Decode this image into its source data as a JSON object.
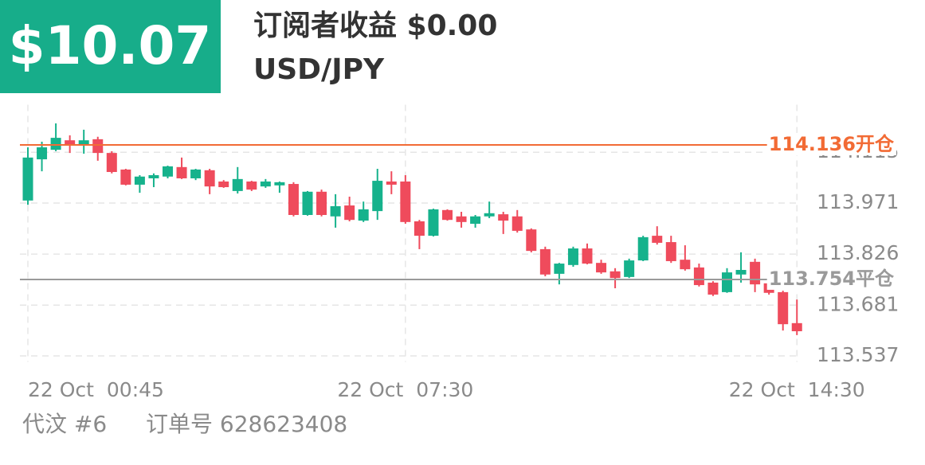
{
  "header": {
    "badge": "$10.07",
    "title": "订阅者收益 $0.00",
    "subtitle": "USD/JPY"
  },
  "chart_data": {
    "type": "candlestick",
    "categories": [
      "22 Oct  00:45",
      null,
      null,
      null,
      null,
      null,
      null,
      null,
      null,
      null,
      null,
      null,
      null,
      null,
      null,
      null,
      null,
      null,
      null,
      null,
      null,
      null,
      null,
      null,
      null,
      null,
      null,
      "22 Oct  07:30",
      null,
      null,
      null,
      null,
      null,
      null,
      null,
      null,
      null,
      null,
      null,
      null,
      null,
      null,
      null,
      null,
      null,
      null,
      null,
      null,
      null,
      null,
      null,
      null,
      null,
      null,
      null,
      "22 Oct  14:30"
    ],
    "series": [
      {
        "name": "open",
        "values": [
          113.978,
          114.095,
          114.122,
          114.149,
          114.136,
          114.152,
          114.113,
          114.066,
          114.023,
          114.041,
          114.046,
          114.073,
          114.041,
          114.064,
          114.032,
          114.005,
          114.032,
          114.018,
          114.021,
          114.025,
          113.937,
          114.003,
          113.933,
          113.964,
          113.921,
          113.948,
          114.032,
          114.032,
          113.919,
          113.878,
          113.951,
          113.933,
          113.912,
          113.933,
          113.939,
          113.933,
          113.896,
          113.84,
          113.77,
          113.795,
          113.842,
          113.801,
          113.777,
          113.761,
          113.808,
          113.878,
          113.86,
          113.81,
          113.788,
          113.745,
          113.718,
          113.768,
          113.804,
          113.743,
          113.718,
          113.63
        ]
      },
      {
        "name": "high",
        "values": [
          114.129,
          114.145,
          114.197,
          114.163,
          114.179,
          114.159,
          114.118,
          114.068,
          114.05,
          114.055,
          114.077,
          114.1,
          114.068,
          114.068,
          114.036,
          114.073,
          114.034,
          114.039,
          114.032,
          114.03,
          114.005,
          114.009,
          113.996,
          113.989,
          113.975,
          114.068,
          114.061,
          114.05,
          113.923,
          113.955,
          113.953,
          113.946,
          113.937,
          113.975,
          113.946,
          113.951,
          113.899,
          113.847,
          113.801,
          113.847,
          113.856,
          113.81,
          113.786,
          113.813,
          113.878,
          113.905,
          113.878,
          113.851,
          113.799,
          113.749,
          113.786,
          113.831,
          113.813,
          113.772,
          113.722,
          113.697
        ]
      },
      {
        "name": "low",
        "values": [
          113.966,
          114.061,
          114.118,
          114.113,
          114.111,
          114.091,
          114.055,
          114.021,
          114.0,
          114.016,
          114.041,
          114.039,
          114.036,
          113.996,
          114.014,
          113.998,
          114.005,
          114.014,
          114.0,
          113.933,
          113.935,
          113.933,
          113.901,
          113.919,
          113.917,
          113.923,
          113.996,
          113.912,
          113.84,
          113.876,
          113.921,
          113.901,
          113.901,
          113.928,
          113.883,
          113.887,
          113.831,
          113.763,
          113.74,
          113.79,
          113.797,
          113.77,
          113.729,
          113.758,
          113.806,
          113.853,
          113.801,
          113.779,
          113.734,
          113.707,
          113.716,
          113.745,
          113.718,
          113.711,
          113.609,
          113.596
        ]
      },
      {
        "name": "close",
        "values": [
          114.1,
          114.129,
          114.156,
          114.136,
          114.149,
          114.113,
          114.059,
          114.023,
          114.046,
          114.05,
          114.075,
          114.041,
          114.066,
          114.018,
          114.016,
          114.039,
          114.009,
          114.032,
          114.03,
          113.937,
          114.003,
          113.937,
          113.962,
          113.923,
          113.953,
          114.034,
          114.023,
          113.917,
          113.878,
          113.953,
          113.923,
          113.917,
          113.933,
          113.942,
          113.921,
          113.892,
          113.835,
          113.768,
          113.799,
          113.842,
          113.799,
          113.774,
          113.758,
          113.808,
          113.874,
          113.858,
          113.806,
          113.783,
          113.738,
          113.711,
          113.774,
          113.781,
          113.74,
          113.716,
          113.627,
          113.607
        ]
      }
    ],
    "up_color": "#16b28c",
    "down_color": "#ef4b5c",
    "ylim": [
      113.52,
      114.25
    ],
    "yticks": [
      113.537,
      113.681,
      113.826,
      113.971,
      114.115
    ],
    "grid": true,
    "reference_lines": [
      {
        "value": 114.136,
        "label": "开仓",
        "color": "#f26b35"
      },
      {
        "value": 113.754,
        "label": "平仓",
        "color": "#9a9a9a"
      }
    ]
  },
  "footer": {
    "trader": "代汶 #6",
    "order": "订单号 628623408"
  }
}
